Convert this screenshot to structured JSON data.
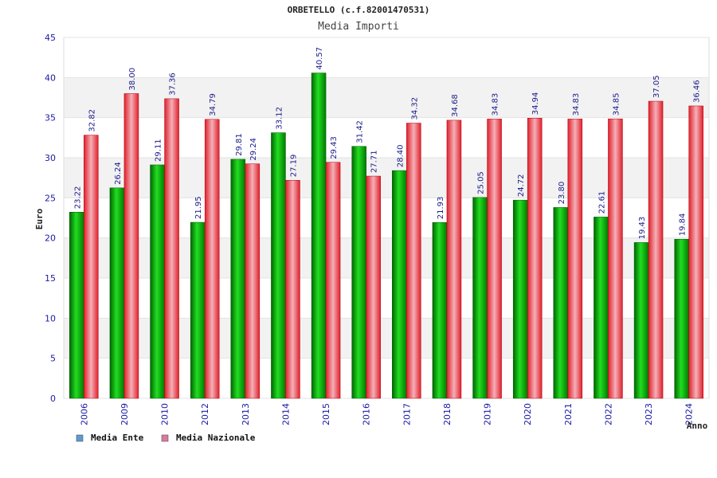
{
  "chart_data": {
    "type": "bar",
    "title": "ORBETELLO (c.f.82001470531)",
    "subtitle": "Media Importi",
    "xlabel": "Anno",
    "ylabel": "Euro",
    "ylim": [
      0,
      45
    ],
    "yticks": [
      0,
      5,
      10,
      15,
      20,
      25,
      30,
      35,
      40,
      45
    ],
    "grid": true,
    "legend_position": "bottom-left",
    "categories": [
      "2006",
      "2009",
      "2010",
      "2012",
      "2013",
      "2014",
      "2015",
      "2016",
      "2017",
      "2018",
      "2019",
      "2020",
      "2021",
      "2022",
      "2023",
      "2024"
    ],
    "series": [
      {
        "name": "Media Ente",
        "color": "#00b000",
        "legend_color": "#5b9bd5",
        "values": [
          23.22,
          26.24,
          29.11,
          21.95,
          29.81,
          33.12,
          40.57,
          31.42,
          28.4,
          21.93,
          25.05,
          24.72,
          23.8,
          22.61,
          19.43,
          19.84
        ],
        "labels": [
          "23.22",
          "26.24",
          "29.11",
          "21.95",
          "29.81",
          "33.12",
          "40.57",
          "31.42",
          "28.40",
          "21.93",
          "25.05",
          "24.72",
          "23.80",
          "22.61",
          "19.43",
          "19.84"
        ]
      },
      {
        "name": "Media Nazionale",
        "color": "#e8202a",
        "legend_color": "#d97aa0",
        "values": [
          32.82,
          38.0,
          37.36,
          34.79,
          29.24,
          27.19,
          29.43,
          27.71,
          34.32,
          34.68,
          34.83,
          34.94,
          34.83,
          34.85,
          37.05,
          36.46
        ],
        "labels": [
          "32.82",
          "38.00",
          "37.36",
          "34.79",
          "29.24",
          "27.19",
          "29.43",
          "27.71",
          "34.32",
          "34.68",
          "34.83",
          "34.94",
          "34.83",
          "34.85",
          "37.05",
          "36.46"
        ]
      }
    ]
  }
}
